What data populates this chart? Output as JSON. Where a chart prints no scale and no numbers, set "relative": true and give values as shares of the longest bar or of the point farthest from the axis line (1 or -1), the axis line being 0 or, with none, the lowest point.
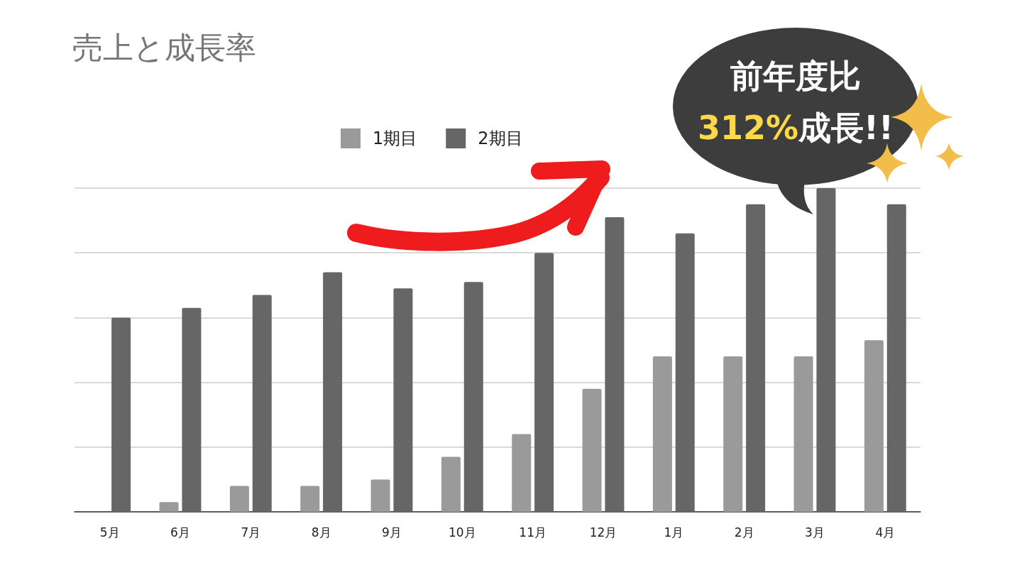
{
  "chart_data": {
    "type": "bar",
    "title": "売上と成長率",
    "categories": [
      "5月",
      "6月",
      "7月",
      "8月",
      "9月",
      "10月",
      "11月",
      "12月",
      "1月",
      "2月",
      "3月",
      "4月"
    ],
    "relative": true,
    "series": [
      {
        "name": "1期目",
        "color": "#9a9a9a",
        "values": [
          null,
          0.03,
          0.08,
          0.08,
          0.1,
          0.17,
          0.24,
          0.38,
          0.48,
          0.48,
          0.48,
          0.53
        ]
      },
      {
        "name": "2期目",
        "color": "#666666",
        "values": [
          0.6,
          0.63,
          0.67,
          0.74,
          0.69,
          0.71,
          0.8,
          0.91,
          0.86,
          0.95,
          1,
          0.95
        ]
      }
    ],
    "legend": "top",
    "grid": "y",
    "annotations": [
      "前年度比",
      "312%",
      "成長!!"
    ]
  }
}
